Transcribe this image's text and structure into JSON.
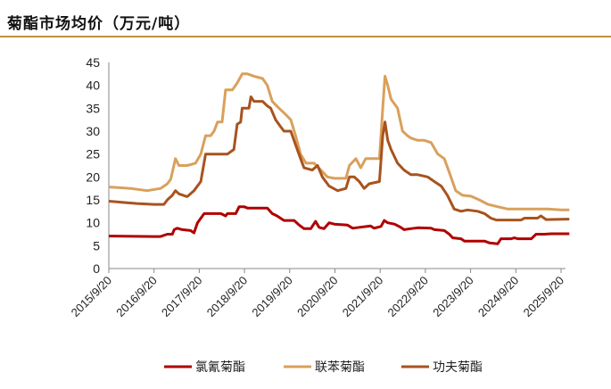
{
  "title": "菊酯市场均价（万元/吨）",
  "colors": {
    "rule": "#C0903F"
  },
  "chart_data": {
    "type": "line",
    "title": "菊酯市场均价（万元/吨）",
    "xlabel": "",
    "ylabel": "",
    "ylim": [
      0,
      45
    ],
    "yticks": [
      "0",
      "5",
      "10",
      "15",
      "20",
      "25",
      "30",
      "35",
      "40",
      "45"
    ],
    "xticks": [
      "2015/9/20",
      "2016/9/20",
      "2017/9/20",
      "2018/9/20",
      "2019/9/20",
      "2020/9/20",
      "2021/9/20",
      "2022/9/20",
      "2023/9/20",
      "2024/9/20",
      "2025/9/20"
    ],
    "grid": false,
    "legend": "bottom",
    "series": [
      {
        "name": "氯氰菊酯",
        "color": "#B00000",
        "points": [
          [
            "2015-09-20",
            7.1
          ],
          [
            "2016-09-20",
            7.0
          ],
          [
            "2016-11-11",
            7.0
          ],
          [
            "2017-01-05",
            7.5
          ],
          [
            "2017-02-14",
            7.5
          ],
          [
            "2017-03-01",
            8.5
          ],
          [
            "2017-03-26",
            8.8
          ],
          [
            "2017-05-05",
            8.5
          ],
          [
            "2017-07-11",
            8.3
          ],
          [
            "2017-08-08",
            7.8
          ],
          [
            "2017-09-05",
            10.0
          ],
          [
            "2017-10-29",
            12.0
          ],
          [
            "2018-03-13",
            12.0
          ],
          [
            "2018-04-20",
            11.5
          ],
          [
            "2018-05-05",
            12.0
          ],
          [
            "2018-07-11",
            12.0
          ],
          [
            "2018-08-08",
            13.5
          ],
          [
            "2018-09-17",
            13.5
          ],
          [
            "2018-10-14",
            13.2
          ],
          [
            "2019-03-23",
            13.2
          ],
          [
            "2019-05-02",
            12.0
          ],
          [
            "2019-06-10",
            11.5
          ],
          [
            "2019-08-05",
            10.5
          ],
          [
            "2019-10-26",
            10.5
          ],
          [
            "2019-12-05",
            9.5
          ],
          [
            "2020-01-14",
            8.7
          ],
          [
            "2020-03-08",
            8.7
          ],
          [
            "2020-04-16",
            10.3
          ],
          [
            "2020-05-14",
            9.0
          ],
          [
            "2020-06-23",
            8.7
          ],
          [
            "2020-08-04",
            10.0
          ],
          [
            "2020-09-14",
            9.7
          ],
          [
            "2020-12-29",
            9.5
          ],
          [
            "2021-02-10",
            8.8
          ],
          [
            "2021-04-04",
            9.0
          ],
          [
            "2021-07-05",
            9.3
          ],
          [
            "2021-08-01",
            8.8
          ],
          [
            "2021-09-26",
            9.2
          ],
          [
            "2021-10-23",
            10.5
          ],
          [
            "2021-11-20",
            10.0
          ],
          [
            "2022-01-14",
            9.7
          ],
          [
            "2022-03-05",
            9.0
          ],
          [
            "2022-04-01",
            8.5
          ],
          [
            "2022-05-26",
            8.7
          ],
          [
            "2022-07-20",
            8.9
          ],
          [
            "2022-11-05",
            8.8
          ],
          [
            "2022-12-02",
            8.5
          ],
          [
            "2023-02-20",
            8.3
          ],
          [
            "2023-04-01",
            7.5
          ],
          [
            "2023-04-29",
            6.7
          ],
          [
            "2023-07-05",
            6.5
          ],
          [
            "2023-08-01",
            6.0
          ],
          [
            "2024-01-11",
            6.0
          ],
          [
            "2024-02-20",
            5.6
          ],
          [
            "2024-04-26",
            5.4
          ],
          [
            "2024-05-23",
            6.5
          ],
          [
            "2024-08-14",
            6.5
          ],
          [
            "2024-09-08",
            6.7
          ],
          [
            "2024-10-05",
            6.5
          ],
          [
            "2025-01-23",
            6.5
          ],
          [
            "2025-03-02",
            7.5
          ],
          [
            "2025-05-08",
            7.5
          ],
          [
            "2025-07-02",
            7.6
          ],
          [
            "2025-11-26",
            7.6
          ]
        ]
      },
      {
        "name": "联苯菊酯",
        "color": "#D9A05B",
        "points": [
          [
            "2015-09-20",
            17.8
          ],
          [
            "2016-03-14",
            17.5
          ],
          [
            "2016-07-26",
            17.0
          ],
          [
            "2016-11-11",
            17.5
          ],
          [
            "2017-01-05",
            18.5
          ],
          [
            "2017-02-01",
            19.5
          ],
          [
            "2017-03-11",
            24.0
          ],
          [
            "2017-04-08",
            22.5
          ],
          [
            "2017-06-14",
            22.5
          ],
          [
            "2017-08-20",
            23.0
          ],
          [
            "2017-10-02",
            25.0
          ],
          [
            "2017-11-10",
            29.0
          ],
          [
            "2017-12-20",
            29.0
          ],
          [
            "2018-01-17",
            30.0
          ],
          [
            "2018-02-14",
            32.0
          ],
          [
            "2018-03-23",
            32.0
          ],
          [
            "2018-04-20",
            39.0
          ],
          [
            "2018-06-14",
            39.0
          ],
          [
            "2018-07-23",
            40.5
          ],
          [
            "2018-09-01",
            42.5
          ],
          [
            "2018-10-14",
            42.5
          ],
          [
            "2018-12-05",
            42.0
          ],
          [
            "2019-02-13",
            41.5
          ],
          [
            "2019-03-23",
            40.0
          ],
          [
            "2019-05-02",
            36.5
          ],
          [
            "2019-06-26",
            35.0
          ],
          [
            "2019-08-05",
            34.0
          ],
          [
            "2019-09-29",
            32.5
          ],
          [
            "2019-11-07",
            29.0
          ],
          [
            "2019-12-17",
            25.0
          ],
          [
            "2020-01-29",
            23.0
          ],
          [
            "2020-04-04",
            23.0
          ],
          [
            "2020-05-29",
            21.5
          ],
          [
            "2020-07-20",
            20.0
          ],
          [
            "2020-09-14",
            19.7
          ],
          [
            "2020-12-17",
            19.7
          ],
          [
            "2021-01-14",
            22.5
          ],
          [
            "2021-03-08",
            24.0
          ],
          [
            "2021-04-16",
            22.0
          ],
          [
            "2021-05-26",
            24.0
          ],
          [
            "2021-09-14",
            24.0
          ],
          [
            "2021-10-11",
            35.0
          ],
          [
            "2021-10-29",
            42.0
          ],
          [
            "2021-11-20",
            40.0
          ],
          [
            "2021-12-17",
            37.0
          ],
          [
            "2022-02-07",
            35.0
          ],
          [
            "2022-03-20",
            30.0
          ],
          [
            "2022-04-29",
            29.0
          ],
          [
            "2022-05-26",
            28.5
          ],
          [
            "2022-07-20",
            28.0
          ],
          [
            "2022-09-11",
            28.0
          ],
          [
            "2022-11-05",
            27.5
          ],
          [
            "2022-12-29",
            25.0
          ],
          [
            "2023-02-20",
            24.0
          ],
          [
            "2023-04-14",
            20.0
          ],
          [
            "2023-05-23",
            17.0
          ],
          [
            "2023-07-17",
            16.0
          ],
          [
            "2023-09-23",
            15.8
          ],
          [
            "2023-11-29",
            15.0
          ],
          [
            "2024-02-07",
            14.0
          ],
          [
            "2024-04-26",
            13.5
          ],
          [
            "2024-07-17",
            13.0
          ],
          [
            "2024-12-26",
            13.0
          ],
          [
            "2025-06-05",
            13.0
          ],
          [
            "2025-09-20",
            12.8
          ],
          [
            "2025-11-26",
            12.8
          ]
        ]
      },
      {
        "name": "功夫菊酯",
        "color": "#A8531F",
        "points": [
          [
            "2015-09-20",
            14.7
          ],
          [
            "2015-12-23",
            14.5
          ],
          [
            "2016-05-05",
            14.2
          ],
          [
            "2016-09-20",
            14.0
          ],
          [
            "2016-12-08",
            14.0
          ],
          [
            "2017-01-05",
            15.0
          ],
          [
            "2017-02-14",
            16.0
          ],
          [
            "2017-03-11",
            17.0
          ],
          [
            "2017-04-08",
            16.3
          ],
          [
            "2017-06-14",
            15.7
          ],
          [
            "2017-08-08",
            17.0
          ],
          [
            "2017-10-02",
            19.0
          ],
          [
            "2017-11-10",
            25.0
          ],
          [
            "2018-01-17",
            25.0
          ],
          [
            "2018-05-05",
            25.0
          ],
          [
            "2018-06-26",
            26.0
          ],
          [
            "2018-07-23",
            31.5
          ],
          [
            "2018-08-20",
            32.0
          ],
          [
            "2018-09-01",
            35.0
          ],
          [
            "2018-10-26",
            35.0
          ],
          [
            "2018-11-11",
            37.5
          ],
          [
            "2018-12-05",
            36.5
          ],
          [
            "2019-02-13",
            36.5
          ],
          [
            "2019-03-23",
            35.5
          ],
          [
            "2019-04-20",
            35.0
          ],
          [
            "2019-05-29",
            32.5
          ],
          [
            "2019-07-08",
            31.0
          ],
          [
            "2019-08-05",
            30.0
          ],
          [
            "2019-09-29",
            30.0
          ],
          [
            "2019-11-07",
            27.0
          ],
          [
            "2019-12-17",
            24.0
          ],
          [
            "2020-01-14",
            22.0
          ],
          [
            "2020-03-20",
            21.5
          ],
          [
            "2020-05-02",
            22.5
          ],
          [
            "2020-06-10",
            20.0
          ],
          [
            "2020-08-04",
            18.0
          ],
          [
            "2020-10-11",
            17.0
          ],
          [
            "2020-12-17",
            17.5
          ],
          [
            "2021-01-14",
            20.0
          ],
          [
            "2021-02-23",
            20.0
          ],
          [
            "2021-04-04",
            19.0
          ],
          [
            "2021-05-14",
            17.5
          ],
          [
            "2021-06-23",
            18.5
          ],
          [
            "2021-09-14",
            19.0
          ],
          [
            "2021-10-11",
            29.0
          ],
          [
            "2021-10-29",
            32.0
          ],
          [
            "2021-11-20",
            28.0
          ],
          [
            "2021-12-17",
            26.0
          ],
          [
            "2022-02-07",
            23.0
          ],
          [
            "2022-04-01",
            21.5
          ],
          [
            "2022-05-26",
            20.5
          ],
          [
            "2022-07-20",
            20.5
          ],
          [
            "2022-10-08",
            20.0
          ],
          [
            "2022-12-02",
            19.0
          ],
          [
            "2023-01-26",
            18.0
          ],
          [
            "2023-03-17",
            16.0
          ],
          [
            "2023-05-11",
            13.0
          ],
          [
            "2023-07-05",
            12.5
          ],
          [
            "2023-08-26",
            12.8
          ],
          [
            "2023-11-17",
            12.5
          ],
          [
            "2024-01-11",
            12.0
          ],
          [
            "2024-03-02",
            11.0
          ],
          [
            "2024-04-14",
            10.6
          ],
          [
            "2024-11-01",
            10.6
          ],
          [
            "2024-11-29",
            11.0
          ],
          [
            "2025-03-14",
            11.0
          ],
          [
            "2025-04-10",
            11.5
          ],
          [
            "2025-05-23",
            10.7
          ],
          [
            "2025-11-26",
            10.8
          ]
        ]
      }
    ]
  }
}
